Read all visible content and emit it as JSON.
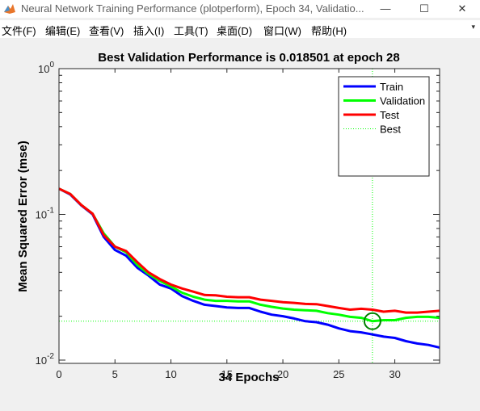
{
  "window": {
    "title": "Neural Network Training Performance (plotperform), Epoch 34, Validatio...",
    "minimize": "—",
    "maximize": "☐",
    "close": "✕"
  },
  "menu": {
    "items": [
      {
        "label": "文件(F)"
      },
      {
        "label": "编辑(E)"
      },
      {
        "label": "查看(V)"
      },
      {
        "label": "插入(I)"
      },
      {
        "label": "工具(T)"
      },
      {
        "label": "桌面(D)"
      },
      {
        "label": "窗口(W)"
      },
      {
        "label": "帮助(H)"
      }
    ],
    "overflow_arrow": "▾"
  },
  "chart_data": {
    "type": "line",
    "title": "Best Validation Performance is 0.018501 at epoch 28",
    "xlabel": "34 Epochs",
    "ylabel": "Mean Squared Error  (mse)",
    "xlim": [
      0,
      34
    ],
    "ylim": [
      0.0095,
      1
    ],
    "yscale": "log",
    "x_ticks": [
      0,
      5,
      10,
      15,
      20,
      25,
      30
    ],
    "y_ticks": [
      {
        "value": 0.01,
        "base": "10",
        "exp": "-2"
      },
      {
        "value": 0.1,
        "base": "10",
        "exp": "-1"
      },
      {
        "value": 1,
        "base": "10",
        "exp": "0"
      }
    ],
    "grid": false,
    "legend_position": "top-right",
    "x": [
      0,
      1,
      2,
      3,
      4,
      5,
      6,
      7,
      8,
      9,
      10,
      11,
      12,
      13,
      14,
      15,
      16,
      17,
      18,
      19,
      20,
      21,
      22,
      23,
      24,
      25,
      26,
      27,
      28,
      29,
      30,
      31,
      32,
      33,
      34
    ],
    "series": [
      {
        "name": "Train",
        "color": "#0000ff",
        "values": [
          0.15,
          0.137,
          0.115,
          0.1,
          0.07,
          0.057,
          0.052,
          0.043,
          0.038,
          0.033,
          0.031,
          0.0275,
          0.0255,
          0.024,
          0.0235,
          0.023,
          0.0228,
          0.0228,
          0.0215,
          0.0205,
          0.02,
          0.0193,
          0.0185,
          0.0182,
          0.0175,
          0.0165,
          0.0158,
          0.0155,
          0.015,
          0.0145,
          0.0142,
          0.0135,
          0.013,
          0.0127,
          0.0122
        ]
      },
      {
        "name": "Validation",
        "color": "#00ff00",
        "values": [
          0.15,
          0.138,
          0.116,
          0.101,
          0.074,
          0.06,
          0.055,
          0.045,
          0.039,
          0.035,
          0.032,
          0.029,
          0.0272,
          0.026,
          0.0255,
          0.0255,
          0.0253,
          0.0253,
          0.024,
          0.0232,
          0.0226,
          0.0222,
          0.022,
          0.0218,
          0.021,
          0.0205,
          0.0198,
          0.0195,
          0.018501,
          0.0188,
          0.0188,
          0.0195,
          0.0198,
          0.0198,
          0.0195
        ]
      },
      {
        "name": "Test",
        "color": "#ff0000",
        "values": [
          0.15,
          0.138,
          0.116,
          0.101,
          0.072,
          0.06,
          0.056,
          0.047,
          0.04,
          0.036,
          0.033,
          0.031,
          0.0295,
          0.028,
          0.0278,
          0.0272,
          0.027,
          0.027,
          0.026,
          0.0255,
          0.025,
          0.0247,
          0.0243,
          0.0242,
          0.0235,
          0.0228,
          0.0222,
          0.0225,
          0.0222,
          0.0215,
          0.0218,
          0.0212,
          0.0212,
          0.0215,
          0.0218
        ]
      }
    ],
    "best": {
      "label": "Best",
      "epoch": 28,
      "value": 0.018501,
      "color": "#00ff00",
      "marker_color": "#008000"
    }
  }
}
